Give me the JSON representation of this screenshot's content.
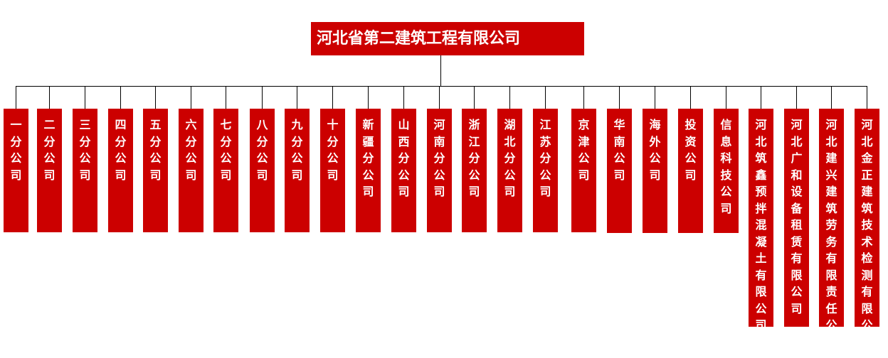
{
  "root": {
    "label": "河北省第二建筑工程有限公司"
  },
  "colors": {
    "box": "#cc0000",
    "text": "#ffffff",
    "connector": "#000000"
  },
  "children": [
    {
      "label": "一分公司"
    },
    {
      "label": "二分公司"
    },
    {
      "label": "三分公司"
    },
    {
      "label": "四分公司"
    },
    {
      "label": "五分公司"
    },
    {
      "label": "六分公司"
    },
    {
      "label": "七分公司"
    },
    {
      "label": "八分公司"
    },
    {
      "label": "九分公司"
    },
    {
      "label": "十分公司"
    },
    {
      "label": "新疆分公司"
    },
    {
      "label": "山西分公司"
    },
    {
      "label": "河南分公司"
    },
    {
      "label": "浙江分公司"
    },
    {
      "label": "湖北分公司"
    },
    {
      "label": "江苏分公司"
    },
    {
      "label": "京津公司"
    },
    {
      "label": "华南公司"
    },
    {
      "label": "海外公司"
    },
    {
      "label": "投资公司"
    },
    {
      "label": "信息科技公司"
    },
    {
      "label": "河北筑鑫预拌混凝土有限公司"
    },
    {
      "label": "河北广和设备租赁有限公司"
    },
    {
      "label": "河北建兴建筑劳务有限责任公司"
    },
    {
      "label": "河北金正建筑技术检测有限公司"
    }
  ]
}
